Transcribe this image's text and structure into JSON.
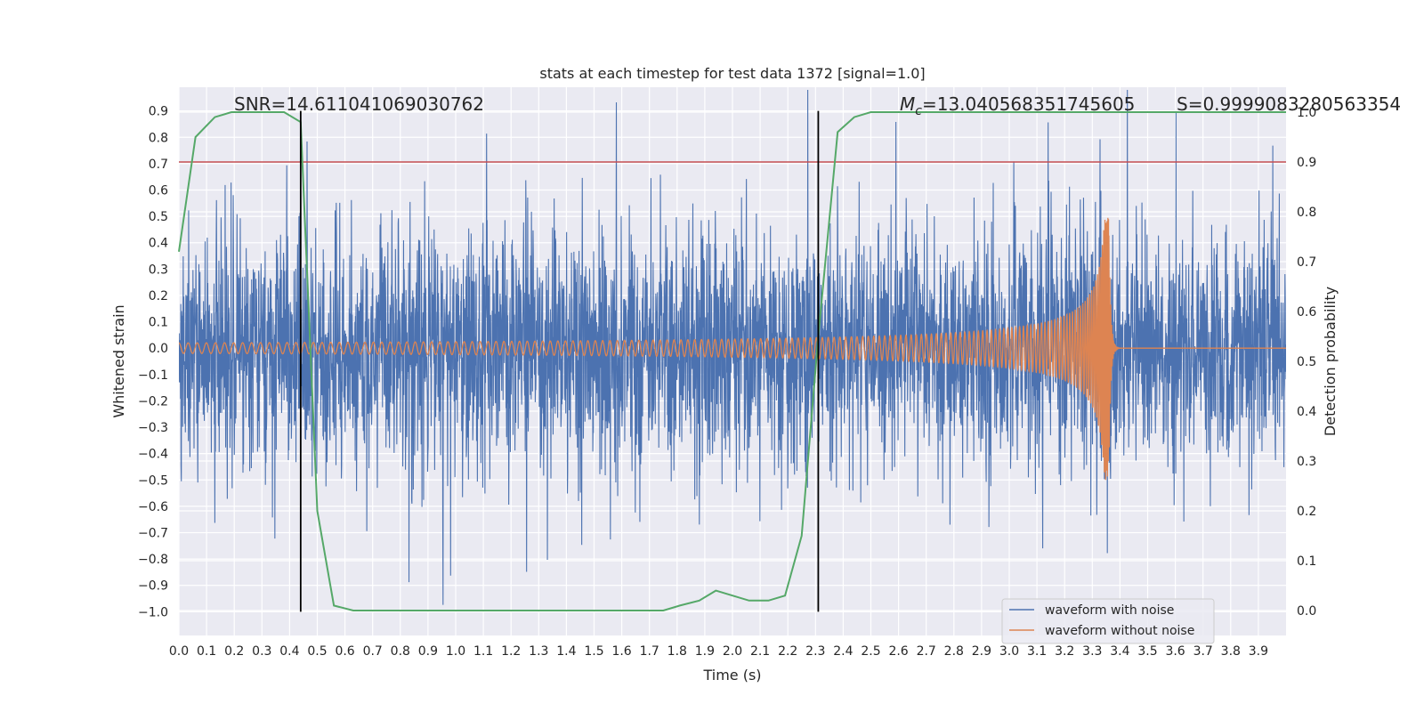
{
  "chart_data": {
    "type": "line",
    "title": "stats at each timestep for test data 1372 [signal=1.0]",
    "xlabel": "Time (s)",
    "ylabel": "Whitened strain",
    "y2label": "Detection probability",
    "xlim": [
      0.0,
      4.0
    ],
    "ylim": [
      -1.09,
      0.99
    ],
    "y2lim": [
      -0.05,
      1.05
    ],
    "x_ticks": [
      0.0,
      0.1,
      0.2,
      0.3,
      0.4,
      0.5,
      0.6,
      0.7,
      0.8,
      0.9,
      1.0,
      1.1,
      1.2,
      1.3,
      1.4,
      1.5,
      1.6,
      1.7,
      1.8,
      1.9,
      2.0,
      2.1,
      2.2,
      2.3,
      2.4,
      2.5,
      2.6,
      2.7,
      2.8,
      2.9,
      3.0,
      3.1,
      3.2,
      3.3,
      3.4,
      3.5,
      3.6,
      3.7,
      3.8,
      3.9
    ],
    "x_tick_labels": [
      "0.0",
      "0.1",
      "0.2",
      "0.3",
      "0.4",
      "0.5",
      "0.6",
      "0.7",
      "0.8",
      "0.9",
      "1.0",
      "1.1",
      "1.2",
      "1.3",
      "1.4",
      "1.5",
      "1.6",
      "1.7",
      "1.8",
      "1.9",
      "2.0",
      "2.1",
      "2.2",
      "2.3",
      "2.4",
      "2.5",
      "2.6",
      "2.7",
      "2.8",
      "2.9",
      "3.0",
      "3.1",
      "3.2",
      "3.3",
      "3.4",
      "3.5",
      "3.6",
      "3.7",
      "3.8",
      "3.9"
    ],
    "y_ticks": [
      -1.0,
      -0.9,
      -0.8,
      -0.7,
      -0.6,
      -0.5,
      -0.4,
      -0.3,
      -0.2,
      -0.1,
      0.0,
      0.1,
      0.2,
      0.3,
      0.4,
      0.5,
      0.6,
      0.7,
      0.8,
      0.9
    ],
    "y_tick_labels": [
      "−1.0",
      "−0.9",
      "−0.8",
      "−0.7",
      "−0.6",
      "−0.5",
      "−0.4",
      "−0.3",
      "−0.2",
      "−0.1",
      "0.0",
      "0.1",
      "0.2",
      "0.3",
      "0.4",
      "0.5",
      "0.6",
      "0.7",
      "0.8",
      "0.9"
    ],
    "y2_ticks": [
      0.0,
      0.1,
      0.2,
      0.3,
      0.4,
      0.5,
      0.6,
      0.7,
      0.8,
      0.9,
      1.0
    ],
    "y2_tick_labels": [
      "0.0",
      "0.1",
      "0.2",
      "0.3",
      "0.4",
      "0.5",
      "0.6",
      "0.7",
      "0.8",
      "0.9",
      "1.0"
    ],
    "threshold": {
      "axis": "right",
      "value": 0.9,
      "color": "#c44e52"
    },
    "vlines": [
      0.44,
      2.31
    ],
    "vline_range": [
      -1.0,
      0.9
    ],
    "annotations": {
      "snr": "SNR=14.611041069030762",
      "mc_symbol": "M",
      "mc_sub": "c",
      "mc_value": "=13.040568351745605",
      "s": "S=0.9999083280563354"
    },
    "series": [
      {
        "name": "waveform with noise",
        "color": "#4c72b0",
        "axis": "left",
        "kind": "noise",
        "seed": 1372,
        "sigma": 0.22,
        "samples": 4096
      },
      {
        "name": "waveform without noise",
        "color": "#dd8452",
        "axis": "left",
        "kind": "chirp",
        "t_merge": 3.36,
        "f_start": 30,
        "amp_start": 0.02,
        "amp_peak": 0.5
      },
      {
        "name": "detection probability",
        "color": "#55a868",
        "axis": "right",
        "x": [
          0.0,
          0.06,
          0.13,
          0.19,
          0.25,
          0.31,
          0.38,
          0.44,
          0.5,
          0.56,
          0.63,
          0.69,
          0.75,
          0.81,
          0.88,
          0.94,
          1.0,
          1.06,
          1.13,
          1.19,
          1.25,
          1.31,
          1.38,
          1.44,
          1.5,
          1.56,
          1.63,
          1.69,
          1.75,
          1.81,
          1.88,
          1.94,
          2.0,
          2.06,
          2.13,
          2.19,
          2.25,
          2.31,
          2.38,
          2.44,
          2.5,
          2.56,
          2.63,
          2.69,
          2.75,
          2.81,
          2.88,
          2.94,
          3.0,
          3.06,
          3.13,
          3.19,
          3.25,
          3.31,
          3.38,
          3.44,
          3.5,
          3.56,
          3.63,
          3.69,
          3.75,
          3.81,
          3.88,
          3.94,
          4.0
        ],
        "values": [
          0.72,
          0.95,
          0.99,
          1.0,
          1.0,
          1.0,
          1.0,
          0.98,
          0.2,
          0.01,
          0.0,
          0.0,
          0.0,
          0.0,
          0.0,
          0.0,
          0.0,
          0.0,
          0.0,
          0.0,
          0.0,
          0.0,
          0.0,
          0.0,
          0.0,
          0.0,
          0.0,
          0.0,
          0.0,
          0.01,
          0.02,
          0.04,
          0.03,
          0.02,
          0.02,
          0.03,
          0.15,
          0.55,
          0.96,
          0.99,
          1.0,
          1.0,
          1.0,
          1.0,
          1.0,
          1.0,
          1.0,
          1.0,
          1.0,
          1.0,
          1.0,
          1.0,
          1.0,
          1.0,
          1.0,
          1.0,
          1.0,
          1.0,
          1.0,
          1.0,
          1.0,
          1.0,
          1.0,
          1.0,
          1.0
        ]
      }
    ],
    "legend": {
      "position": "lower-right",
      "entries": [
        "waveform with noise",
        "waveform without noise"
      ]
    }
  }
}
